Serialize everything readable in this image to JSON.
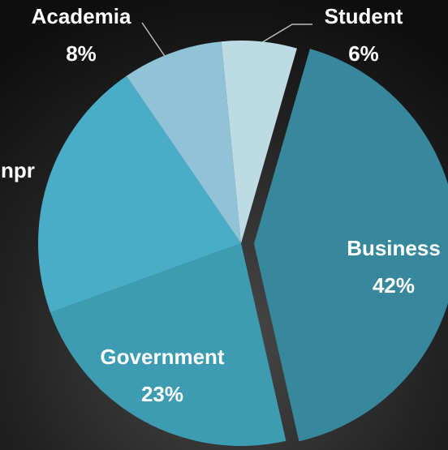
{
  "chart_data": {
    "type": "pie",
    "categories": [
      "Business",
      "Government",
      "npr",
      "Academia",
      "Student"
    ],
    "values": [
      42,
      23,
      21,
      8,
      6
    ],
    "value_labels": [
      "42%",
      "23%",
      null,
      "8%",
      "6%"
    ],
    "colors": [
      "#37889c",
      "#3d9cb2",
      "#49adc8",
      "#8fc3d5",
      "#bcdbe5"
    ]
  }
}
